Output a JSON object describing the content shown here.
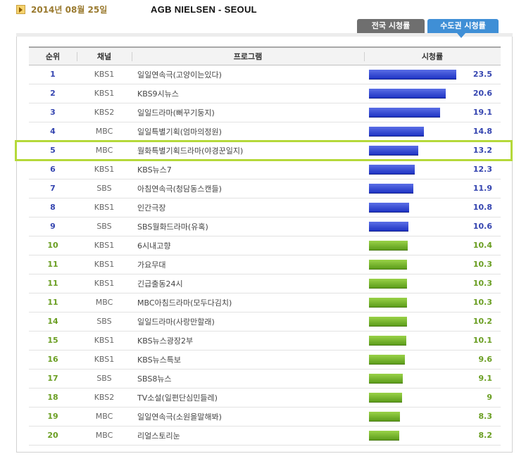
{
  "header": {
    "date": "2014년 08월 25일",
    "title": "AGB NIELSEN - SEOUL"
  },
  "tabs": [
    {
      "label": "전국 시청률",
      "active": false
    },
    {
      "label": "수도권 시청률",
      "active": true
    }
  ],
  "table": {
    "columns": [
      "순위",
      "채널",
      "프로그램",
      "시청률"
    ],
    "max_value": 23.5,
    "highlighted_rank": "5",
    "rows": [
      {
        "rank": "1",
        "channel": "KBS1",
        "program": "일일연속극(고양이는있다)",
        "value": "23.5",
        "color": "blue"
      },
      {
        "rank": "2",
        "channel": "KBS1",
        "program": "KBS9시뉴스",
        "value": "20.6",
        "color": "blue"
      },
      {
        "rank": "3",
        "channel": "KBS2",
        "program": "일일드라마(뻐꾸기둥지)",
        "value": "19.1",
        "color": "blue"
      },
      {
        "rank": "4",
        "channel": "MBC",
        "program": "일일특별기획(엄마의정원)",
        "value": "14.8",
        "color": "blue"
      },
      {
        "rank": "5",
        "channel": "MBC",
        "program": "월화특별기획드라마(야경꾼일지)",
        "value": "13.2",
        "color": "blue"
      },
      {
        "rank": "6",
        "channel": "KBS1",
        "program": "KBS뉴스7",
        "value": "12.3",
        "color": "blue"
      },
      {
        "rank": "7",
        "channel": "SBS",
        "program": "아침연속극(청담동스캔들)",
        "value": "11.9",
        "color": "blue"
      },
      {
        "rank": "8",
        "channel": "KBS1",
        "program": "인간극장",
        "value": "10.8",
        "color": "blue"
      },
      {
        "rank": "9",
        "channel": "SBS",
        "program": "SBS월화드라마(유혹)",
        "value": "10.6",
        "color": "blue"
      },
      {
        "rank": "10",
        "channel": "KBS1",
        "program": "6시내고향",
        "value": "10.4",
        "color": "green"
      },
      {
        "rank": "11",
        "channel": "KBS1",
        "program": "가요무대",
        "value": "10.3",
        "color": "green"
      },
      {
        "rank": "11",
        "channel": "KBS1",
        "program": "긴급출동24시",
        "value": "10.3",
        "color": "green"
      },
      {
        "rank": "11",
        "channel": "MBC",
        "program": "MBC아침드라마(모두다김치)",
        "value": "10.3",
        "color": "green"
      },
      {
        "rank": "14",
        "channel": "SBS",
        "program": "일일드라마(사랑만할래)",
        "value": "10.2",
        "color": "green"
      },
      {
        "rank": "15",
        "channel": "KBS1",
        "program": "KBS뉴스광장2부",
        "value": "10.1",
        "color": "green"
      },
      {
        "rank": "16",
        "channel": "KBS1",
        "program": "KBS뉴스특보",
        "value": "9.6",
        "color": "green"
      },
      {
        "rank": "17",
        "channel": "SBS",
        "program": "SBS8뉴스",
        "value": "9.1",
        "color": "green"
      },
      {
        "rank": "18",
        "channel": "KBS2",
        "program": "TV소설(일편단심민들레)",
        "value": "9",
        "color": "green"
      },
      {
        "rank": "19",
        "channel": "MBC",
        "program": "일일연속극(소원을말해봐)",
        "value": "8.3",
        "color": "green"
      },
      {
        "rank": "20",
        "channel": "MBC",
        "program": "리얼스토리눈",
        "value": "8.2",
        "color": "green"
      }
    ]
  }
}
